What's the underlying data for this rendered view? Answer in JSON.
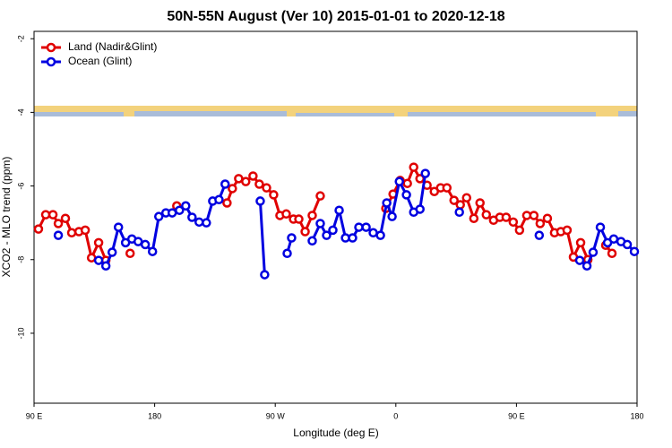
{
  "chart_data": {
    "type": "line",
    "title": "50N-55N August (Ver 10)   2015-01-01 to 2020-12-18",
    "xlabel": "Longitude (deg E)",
    "ylabel": "XCO2 - MLO trend (ppm)",
    "xlim": [
      90,
      540
    ],
    "xticks": [
      {
        "value": 90,
        "label": "90 E"
      },
      180,
      {
        "value": 270,
        "label": "90 W"
      },
      {
        "value": 360,
        "label": "0"
      },
      {
        "value": 450,
        "label": "90 E"
      },
      {
        "value": 540,
        "label": "180"
      }
    ],
    "ylim": [
      -11.9,
      -1.8
    ],
    "yticks": [
      -2,
      -4,
      -6,
      -8,
      -10
    ],
    "legend": "top-left",
    "series": [
      {
        "name": "Land (Nadir&Glint)",
        "color": "#e00000",
        "x": [
          93.3,
          98.7,
          104.1,
          108.1,
          113.4,
          118.1,
          123.5,
          128.2,
          132.9,
          138.2,
          143.6,
          null,
          161.7,
          null,
          196.5,
          null,
          234.0,
          238.0,
          242.7,
          248.0,
          253.4,
          258.1,
          263.5,
          268.8,
          273.5,
          278.2,
          283.6,
          287.6,
          292.3,
          297.6,
          303.6,
          null,
          352.5,
          357.9,
          363.2,
          368.6,
          373.3,
          378.0,
          383.3,
          388.7,
          393.4,
          398.1,
          403.4,
          408.1,
          412.8,
          418.2,
          422.8,
          427.5,
          432.9,
          437.6,
          442.3,
          447.6,
          452.3,
          457.7,
          463.0,
          467.7,
          473.1,
          478.4,
          483.1,
          487.8,
          492.5,
          497.9,
          503.3,
          null,
          516.6,
          521.3
        ],
        "values": [
          -7.17,
          -6.78,
          -6.78,
          -7.02,
          -6.88,
          -7.27,
          -7.24,
          -7.2,
          -7.95,
          -7.54,
          -8.02,
          null,
          -7.83,
          null,
          -6.54,
          null,
          -6.46,
          -6.07,
          -5.8,
          -5.88,
          -5.73,
          -5.95,
          -6.05,
          -6.24,
          -6.8,
          -6.76,
          -6.9,
          -6.9,
          -7.24,
          -6.8,
          -6.27,
          null,
          -6.61,
          -6.22,
          -5.85,
          -5.93,
          -5.49,
          -5.8,
          -5.98,
          -6.15,
          -6.05,
          -6.05,
          -6.39,
          -6.51,
          -6.32,
          -6.88,
          -6.46,
          -6.78,
          -6.93,
          -6.85,
          -6.85,
          -6.98,
          -7.2,
          -6.8,
          -6.8,
          -7.02,
          -6.88,
          -7.27,
          -7.24,
          -7.2,
          -7.93,
          -7.54,
          -8.0,
          null,
          -7.61,
          -7.83
        ]
      },
      {
        "name": "Ocean (Glint)",
        "color": "#0000e0",
        "x": [
          108.1,
          null,
          138.2,
          143.6,
          148.3,
          153.0,
          158.3,
          163.0,
          167.7,
          173.0,
          178.4,
          183.1,
          188.4,
          193.1,
          198.5,
          203.2,
          207.9,
          213.2,
          218.6,
          223.3,
          228.0,
          232.6,
          null,
          258.8,
          262.1,
          null,
          278.9,
          282.2,
          null,
          297.6,
          303.6,
          308.3,
          313.0,
          317.7,
          322.4,
          327.7,
          332.4,
          337.8,
          343.1,
          348.5,
          353.2,
          357.2,
          362.6,
          367.9,
          373.3,
          378.0,
          382.0,
          null,
          407.4,
          null,
          467.0,
          null,
          497.2,
          502.6,
          507.2,
          512.6,
          518.0,
          522.6,
          528.0,
          532.7,
          538.0
        ],
        "values": [
          -7.34,
          null,
          -8.02,
          -8.17,
          -7.8,
          -7.12,
          -7.54,
          -7.44,
          -7.51,
          -7.59,
          -7.78,
          -6.83,
          -6.73,
          -6.73,
          -6.66,
          -6.54,
          -6.85,
          -6.98,
          -7.0,
          -6.41,
          -6.37,
          -5.95,
          null,
          -6.41,
          -8.41,
          null,
          -7.83,
          -7.41,
          null,
          -7.49,
          -7.02,
          -7.34,
          -7.2,
          -6.66,
          -7.41,
          -7.41,
          -7.12,
          -7.12,
          -7.27,
          -7.34,
          -6.46,
          -6.83,
          -5.88,
          -6.24,
          -6.71,
          -6.63,
          -5.66,
          null,
          -6.71,
          null,
          -7.34,
          null,
          -8.02,
          -8.17,
          -7.8,
          -7.12,
          -7.54,
          -7.44,
          -7.51,
          -7.59,
          -7.78
        ]
      }
    ]
  }
}
